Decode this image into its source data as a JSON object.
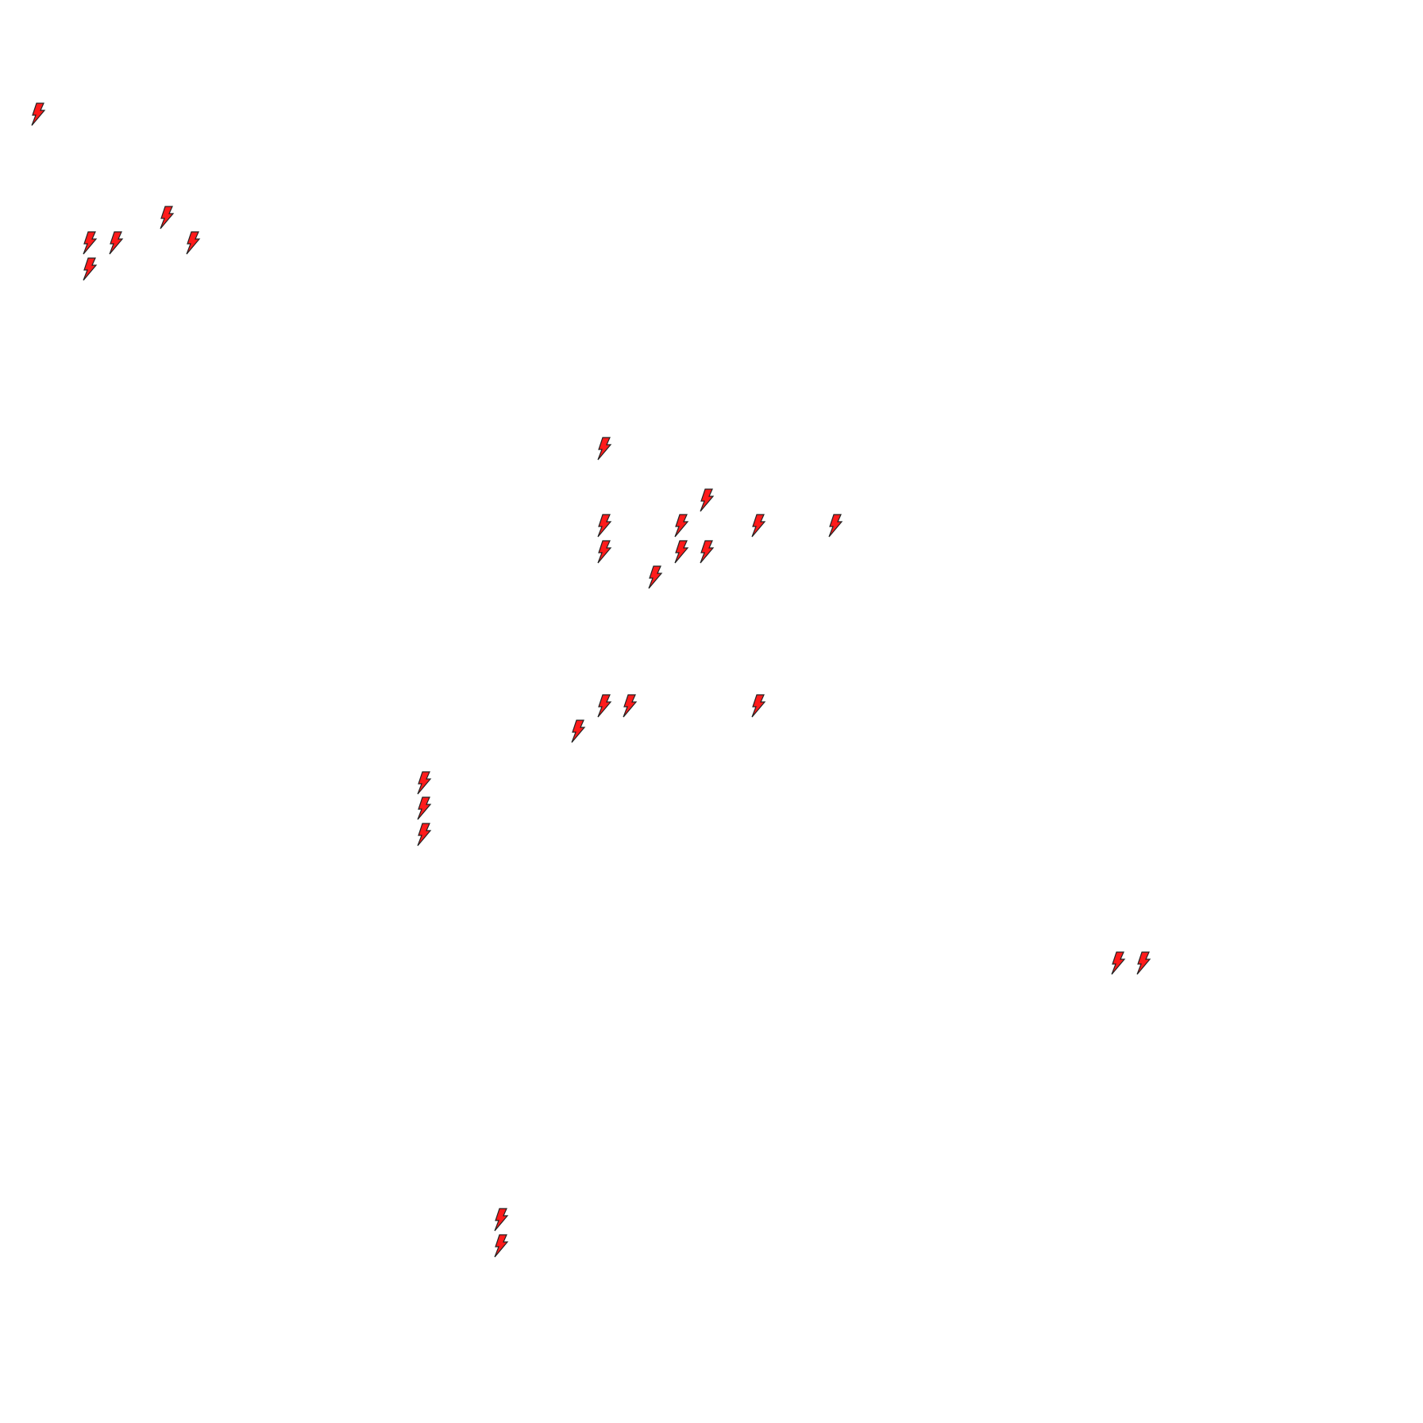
{
  "map": {
    "background_color": "#ffffff",
    "marker_icon": "lightning-bolt-icon",
    "marker_fill_color": "#ff1a1a",
    "marker_stroke_color": "#222222"
  }
}
